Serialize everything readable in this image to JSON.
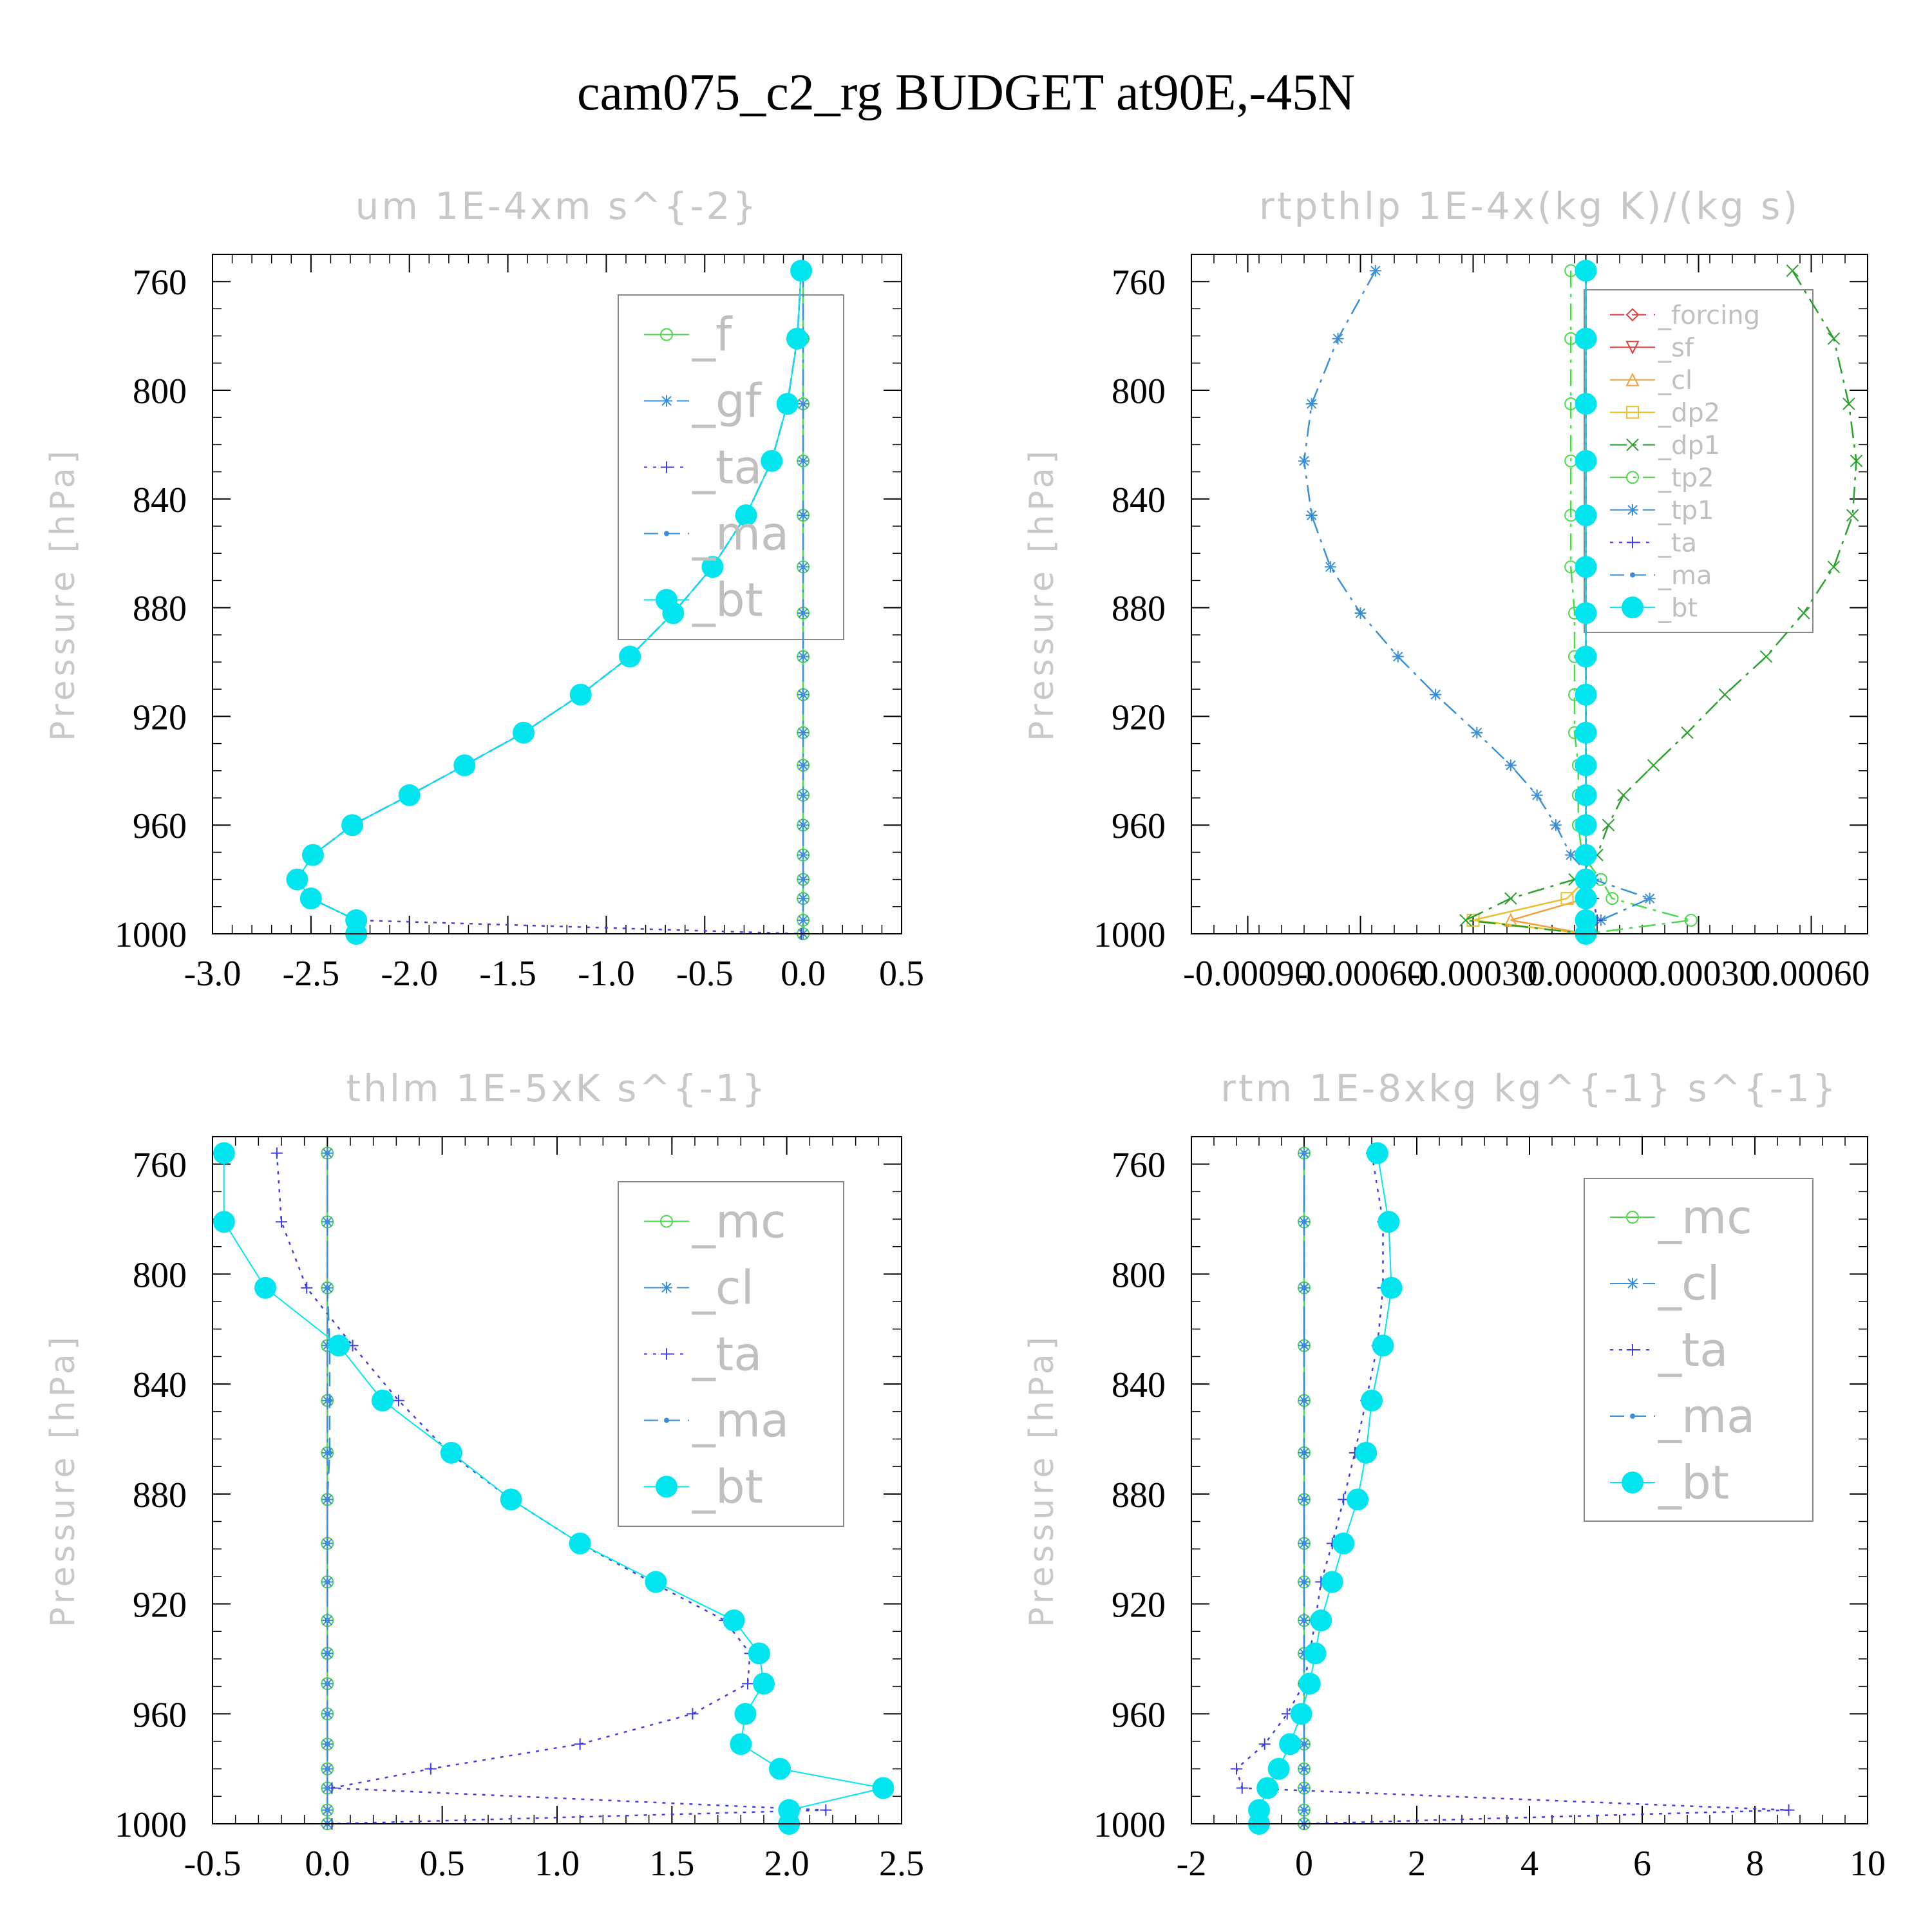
{
  "title": "cam075_c2_rg  BUDGET at90E,-45N",
  "colors": {
    "green": "#4cd94c",
    "blue": "#3a8fd9",
    "purple": "#4040e0",
    "cyan": "#00e5ee",
    "red": "#e04040",
    "orange": "#f0a040",
    "yellow": "#e8c030",
    "darkgreen": "#2ca02c"
  },
  "chart_data": [
    {
      "type": "line",
      "title": "um  1E-4xm s^{-2}",
      "ylabel": "Pressure [hPa]",
      "xlim": [
        -3.0,
        0.5
      ],
      "ylim": [
        1000,
        750
      ],
      "xticks": [
        -3.0,
        -2.5,
        -2.0,
        -1.5,
        -1.0,
        -0.5,
        0.0,
        0.5
      ],
      "xtick_labels": [
        "-3.0",
        "-2.5",
        "-2.0",
        "-1.5",
        "-1.0",
        "-0.5",
        "0.0",
        "0.5"
      ],
      "yticks": [
        760,
        800,
        840,
        880,
        920,
        960,
        1000
      ],
      "ytick_labels": [
        "760",
        "800",
        "840",
        "880",
        "920",
        "960",
        "1000"
      ],
      "legend": "top-right",
      "levels": [
        756,
        781,
        805,
        826,
        846,
        865,
        882,
        898,
        912,
        926,
        938,
        949,
        960,
        971,
        980,
        987,
        995,
        1000
      ],
      "series": [
        {
          "name": "_f",
          "color": "green",
          "style": "solid",
          "marker": "circle",
          "values": [
            0,
            0,
            0,
            0,
            0,
            0,
            0,
            0,
            0,
            0,
            0,
            0,
            0,
            0,
            0,
            0,
            0,
            0
          ]
        },
        {
          "name": "_gf",
          "color": "blue",
          "style": "dashdot",
          "marker": "star",
          "values": [
            0,
            0,
            0,
            0,
            0,
            0,
            0,
            0,
            0,
            0,
            0,
            0,
            0,
            0,
            0,
            0,
            0,
            0
          ]
        },
        {
          "name": "_ta",
          "color": "purple",
          "style": "dotted",
          "marker": "plus",
          "values": [
            -0.01,
            -0.03,
            -0.08,
            -0.16,
            -0.29,
            -0.46,
            -0.66,
            -0.88,
            -1.13,
            -1.42,
            -1.72,
            -2.0,
            -2.29,
            -2.49,
            -2.57,
            -2.5,
            -2.27,
            -0.01
          ]
        },
        {
          "name": "_ma",
          "color": "blue",
          "style": "dashed",
          "marker": "dot",
          "values": [
            -0.01,
            -0.03,
            -0.08,
            -0.16,
            -0.29,
            -0.46,
            -0.66,
            -0.88,
            -1.13,
            -1.42,
            -1.72,
            -2.0,
            -2.29,
            -2.49,
            -2.57,
            -2.5,
            -2.27,
            -2.27
          ]
        },
        {
          "name": "_bt",
          "color": "cyan",
          "style": "solid",
          "marker": "bigdot",
          "values": [
            -0.01,
            -0.03,
            -0.08,
            -0.16,
            -0.29,
            -0.46,
            -0.66,
            -0.88,
            -1.13,
            -1.42,
            -1.72,
            -2.0,
            -2.29,
            -2.49,
            -2.57,
            -2.5,
            -2.27,
            -2.27
          ]
        }
      ]
    },
    {
      "type": "line",
      "title": "rtpthlp  1E-4x(kg K)/(kg s)",
      "ylabel": "Pressure [hPa]",
      "xlim": [
        -0.00105,
        0.00075
      ],
      "ylim": [
        1000,
        750
      ],
      "xticks": [
        -0.0009,
        -0.0006,
        -0.0003,
        0.0,
        0.0003,
        0.0006
      ],
      "xtick_labels": [
        "-0.00090",
        "-0.00060",
        "-0.00030",
        "0.00000",
        "0.00030",
        "0.00060"
      ],
      "yticks": [
        760,
        800,
        840,
        880,
        920,
        960,
        1000
      ],
      "ytick_labels": [
        "760",
        "800",
        "840",
        "880",
        "920",
        "960",
        "1000"
      ],
      "legend": "top-right",
      "levels": [
        756,
        781,
        805,
        826,
        846,
        865,
        882,
        898,
        912,
        926,
        938,
        949,
        960,
        971,
        980,
        987,
        995,
        1000
      ],
      "series": [
        {
          "name": "_forcing",
          "color": "red",
          "style": "dashed",
          "marker": "diamond",
          "values": [
            0,
            0,
            0,
            0,
            0,
            0,
            0,
            0,
            0,
            0,
            0,
            0,
            0,
            0,
            0,
            0,
            0,
            0
          ]
        },
        {
          "name": "_sf",
          "color": "red",
          "style": "solid",
          "marker": "tri-down",
          "values": [
            0,
            0,
            0,
            0,
            0,
            0,
            0,
            0,
            0,
            0,
            0,
            0,
            0,
            0,
            0,
            0,
            0,
            0
          ]
        },
        {
          "name": "_cl",
          "color": "orange",
          "style": "solid",
          "marker": "tri-up",
          "values": [
            0,
            0,
            0,
            0,
            0,
            0,
            0,
            0,
            0,
            0,
            0,
            0,
            0,
            0,
            0,
            0,
            -0.0002,
            0
          ]
        },
        {
          "name": "_dp2",
          "color": "yellow",
          "style": "solid",
          "marker": "square",
          "values": [
            0,
            0,
            0,
            0,
            0,
            0,
            0,
            0,
            0,
            0,
            0,
            0,
            0,
            0,
            0,
            -5e-05,
            -0.0003,
            0
          ]
        },
        {
          "name": "_dp1",
          "color": "darkgreen",
          "style": "dashdot",
          "marker": "x",
          "values": [
            0.00055,
            0.00066,
            0.0007,
            0.00072,
            0.00071,
            0.00066,
            0.00058,
            0.00048,
            0.00037,
            0.00027,
            0.00018,
            0.0001,
            6e-05,
            3e-05,
            -3e-05,
            -0.0002,
            -0.00032,
            0
          ]
        },
        {
          "name": "_tp2",
          "color": "green",
          "style": "dashdot",
          "marker": "circle",
          "values": [
            -4e-05,
            -4e-05,
            -4e-05,
            -4e-05,
            -4e-05,
            -4e-05,
            -3e-05,
            -3e-05,
            -3e-05,
            -3e-05,
            -2e-05,
            -2e-05,
            -2e-05,
            -1e-05,
            4e-05,
            7e-05,
            0.00028,
            0
          ]
        },
        {
          "name": "_tp1",
          "color": "blue",
          "style": "dashdot",
          "marker": "star",
          "values": [
            -0.00056,
            -0.00066,
            -0.00073,
            -0.00075,
            -0.00073,
            -0.00068,
            -0.0006,
            -0.0005,
            -0.0004,
            -0.00029,
            -0.0002,
            -0.00013,
            -8e-05,
            -4e-05,
            2e-05,
            0.00017,
            4e-05,
            0
          ]
        },
        {
          "name": "_ta",
          "color": "purple",
          "style": "dotted",
          "marker": "plus",
          "values": [
            0,
            0,
            0,
            0,
            0,
            0,
            0,
            0,
            0,
            0,
            0,
            0,
            0,
            0,
            0,
            2e-05,
            3e-05,
            0
          ]
        },
        {
          "name": "_ma",
          "color": "blue",
          "style": "dashed",
          "marker": "dot",
          "values": [
            0,
            0,
            0,
            0,
            0,
            0,
            0,
            0,
            0,
            0,
            0,
            0,
            0,
            0,
            0,
            0,
            0,
            0
          ]
        },
        {
          "name": "_bt",
          "color": "cyan",
          "style": "solid",
          "marker": "bigdot",
          "values": [
            0,
            0,
            0,
            0,
            0,
            0,
            0,
            0,
            0,
            0,
            0,
            0,
            0,
            0,
            0,
            0,
            0,
            0
          ]
        }
      ]
    },
    {
      "type": "line",
      "title": "thlm  1E-5xK s^{-1}",
      "ylabel": "Pressure [hPa]",
      "xlim": [
        -0.5,
        2.5
      ],
      "ylim": [
        1000,
        750
      ],
      "xticks": [
        -0.5,
        0.0,
        0.5,
        1.0,
        1.5,
        2.0,
        2.5
      ],
      "xtick_labels": [
        "-0.5",
        "0.0",
        "0.5",
        "1.0",
        "1.5",
        "2.0",
        "2.5"
      ],
      "yticks": [
        760,
        800,
        840,
        880,
        920,
        960,
        1000
      ],
      "ytick_labels": [
        "760",
        "800",
        "840",
        "880",
        "920",
        "960",
        "1000"
      ],
      "legend": "top-right",
      "levels": [
        756,
        781,
        805,
        826,
        846,
        865,
        882,
        898,
        912,
        926,
        938,
        949,
        960,
        971,
        980,
        987,
        995,
        1000
      ],
      "series": [
        {
          "name": "_mc",
          "color": "green",
          "style": "solid",
          "marker": "circle",
          "values": [
            0,
            0,
            0,
            0,
            0,
            0,
            0,
            0,
            0,
            0,
            0,
            0,
            0,
            0,
            0,
            0,
            0,
            0
          ]
        },
        {
          "name": "_cl",
          "color": "blue",
          "style": "dashdot",
          "marker": "star",
          "values": [
            0,
            0,
            0,
            0,
            0,
            0,
            0,
            0,
            0,
            0,
            0,
            0,
            0,
            0,
            0,
            0,
            0,
            0
          ]
        },
        {
          "name": "_ta",
          "color": "purple",
          "style": "dotted",
          "marker": "plus",
          "values": [
            -0.22,
            -0.2,
            -0.09,
            0.11,
            0.31,
            0.53,
            0.8,
            1.1,
            1.41,
            1.73,
            1.84,
            1.83,
            1.59,
            1.1,
            0.45,
            0.02,
            2.17,
            0.02
          ]
        },
        {
          "name": "_ma",
          "color": "blue",
          "style": "dashed",
          "marker": "dot",
          "values": [
            0,
            0,
            0,
            0.01,
            0.01,
            0.01,
            0,
            0,
            0,
            0,
            0,
            0,
            0,
            0,
            0,
            0,
            0,
            0
          ]
        },
        {
          "name": "_bt",
          "color": "cyan",
          "style": "solid",
          "marker": "bigdot",
          "values": [
            -0.45,
            -0.45,
            -0.27,
            0.05,
            0.24,
            0.54,
            0.8,
            1.1,
            1.43,
            1.77,
            1.88,
            1.9,
            1.82,
            1.8,
            1.97,
            2.42,
            2.01,
            2.01
          ]
        }
      ]
    },
    {
      "type": "line",
      "title": "rtm  1E-8xkg kg^{-1} s^{-1}",
      "ylabel": "Pressure [hPa]",
      "xlim": [
        -2,
        10
      ],
      "ylim": [
        1000,
        750
      ],
      "xticks": [
        -2,
        0,
        2,
        4,
        6,
        8,
        10
      ],
      "xtick_labels": [
        "-2",
        "0",
        "2",
        "4",
        "6",
        "8",
        "10"
      ],
      "yticks": [
        760,
        800,
        840,
        880,
        920,
        960,
        1000
      ],
      "ytick_labels": [
        "760",
        "800",
        "840",
        "880",
        "920",
        "960",
        "1000"
      ],
      "legend": "top-right",
      "levels": [
        756,
        781,
        805,
        826,
        846,
        865,
        882,
        898,
        912,
        926,
        938,
        949,
        960,
        971,
        980,
        987,
        995,
        1000
      ],
      "series": [
        {
          "name": "_mc",
          "color": "green",
          "style": "solid",
          "marker": "circle",
          "values": [
            0,
            0,
            0,
            0,
            0,
            0,
            0,
            0,
            0,
            0,
            0,
            0,
            0,
            0,
            0,
            0,
            0,
            0
          ]
        },
        {
          "name": "_cl",
          "color": "blue",
          "style": "dashdot",
          "marker": "star",
          "values": [
            0,
            0,
            0,
            0,
            0,
            0,
            0,
            0,
            0,
            0,
            0,
            0,
            0,
            0,
            0,
            0,
            0,
            0
          ]
        },
        {
          "name": "_ta",
          "color": "purple",
          "style": "dotted",
          "marker": "plus",
          "values": [
            1.2,
            1.4,
            1.4,
            1.3,
            1.1,
            0.9,
            0.7,
            0.5,
            0.3,
            0.2,
            0.1,
            0,
            -0.3,
            -0.7,
            -1.2,
            -1.1,
            8.6,
            0
          ]
        },
        {
          "name": "_ma",
          "color": "blue",
          "style": "dashed",
          "marker": "dot",
          "values": [
            0,
            0,
            0,
            0,
            0,
            0,
            0,
            0,
            0,
            0,
            0,
            0,
            0,
            0,
            0,
            0,
            0,
            0
          ]
        },
        {
          "name": "_bt",
          "color": "cyan",
          "style": "solid",
          "marker": "bigdot",
          "values": [
            1.3,
            1.5,
            1.55,
            1.4,
            1.2,
            1.1,
            0.95,
            0.7,
            0.5,
            0.3,
            0.2,
            0.1,
            -0.05,
            -0.25,
            -0.45,
            -0.65,
            -0.8,
            -0.8
          ]
        }
      ]
    }
  ]
}
